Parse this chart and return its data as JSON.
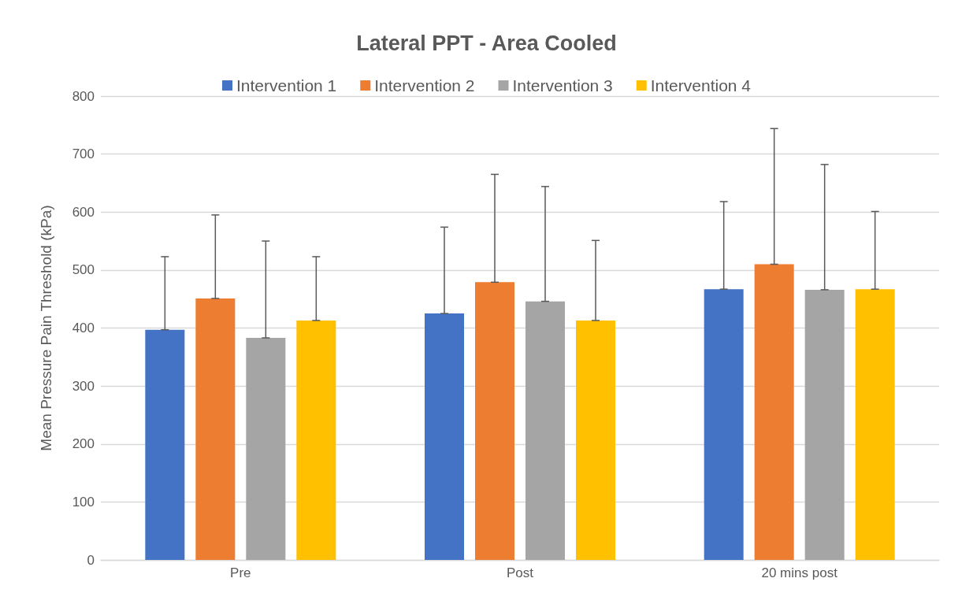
{
  "chart_data": {
    "type": "bar",
    "title": "Lateral PPT - Area Cooled",
    "ylabel": "Mean Pressure Pain Threshold (kPa)",
    "categories": [
      "Pre",
      "Post",
      "20 mins post"
    ],
    "series": [
      {
        "name": "Intervention 1",
        "color": "#4472c4",
        "values": [
          397,
          425,
          467
        ],
        "errors": [
          [
            397,
            523
          ],
          [
            425,
            574
          ],
          [
            467,
            618
          ]
        ]
      },
      {
        "name": "Intervention 2",
        "color": "#ed7d31",
        "values": [
          451,
          479,
          510
        ],
        "errors": [
          [
            451,
            595
          ],
          [
            479,
            665
          ],
          [
            510,
            744
          ]
        ]
      },
      {
        "name": "Intervention 3",
        "color": "#a5a5a5",
        "values": [
          383,
          446,
          466
        ],
        "errors": [
          [
            383,
            550
          ],
          [
            446,
            644
          ],
          [
            466,
            682
          ]
        ]
      },
      {
        "name": "Intervention 4",
        "color": "#ffc000",
        "values": [
          413,
          413,
          467
        ],
        "errors": [
          [
            413,
            523
          ],
          [
            413,
            551
          ],
          [
            467,
            601
          ]
        ]
      }
    ],
    "ylim": [
      0,
      800
    ],
    "yticks": [
      0,
      100,
      200,
      300,
      400,
      500,
      600,
      700,
      800
    ],
    "grid": "y",
    "legend": "top"
  }
}
